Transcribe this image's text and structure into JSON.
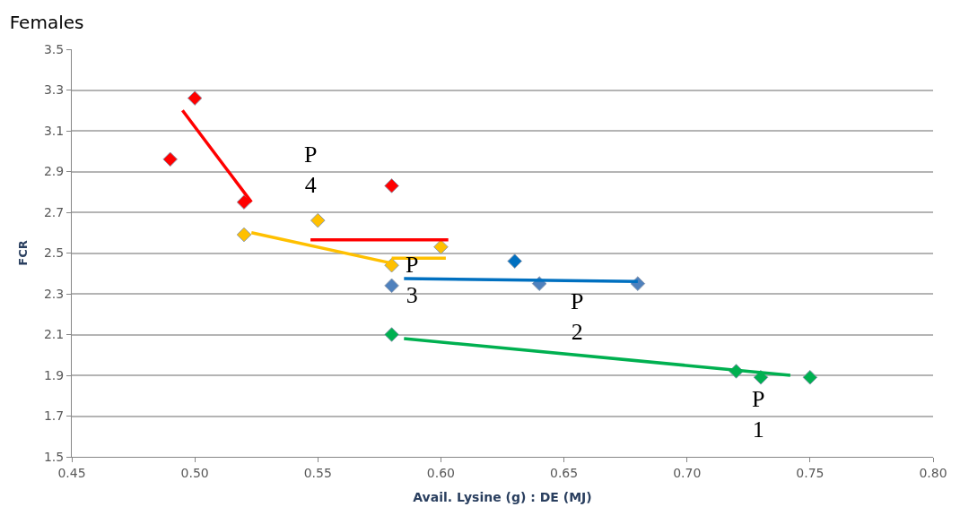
{
  "chart_data": {
    "type": "scatter",
    "title": "Females",
    "xlabel": "Avail. Lysine (g) : DE (MJ)",
    "ylabel": "FCR",
    "xlim": [
      0.45,
      0.8
    ],
    "xticks": [
      {
        "value": 0.45,
        "label": "0.45"
      },
      {
        "value": 0.5,
        "label": "0.50"
      },
      {
        "value": 0.55,
        "label": "0.55"
      },
      {
        "value": 0.6,
        "label": "0.60"
      },
      {
        "value": 0.65,
        "label": "0.65"
      },
      {
        "value": 0.7,
        "label": "0.70"
      },
      {
        "value": 0.75,
        "label": "0.75"
      },
      {
        "value": 0.8,
        "label": "0.80"
      }
    ],
    "ylim": [
      1.5,
      3.5
    ],
    "yticks": [
      1.5,
      1.7,
      1.9,
      2.1,
      2.3,
      2.5,
      2.7,
      2.9,
      3.1,
      3.3,
      3.5
    ],
    "grid": "y",
    "series": [
      {
        "marker": "diamond",
        "color": "#ff0000",
        "x": [
          0.49,
          0.5,
          0.52,
          0.58
        ],
        "values": [
          2.96,
          3.26,
          2.75,
          2.83
        ]
      },
      {
        "marker": "diamond",
        "color": "#ffc000",
        "x": [
          0.52,
          0.55,
          0.58,
          0.6
        ],
        "values": [
          2.59,
          2.66,
          2.44,
          2.53
        ]
      },
      {
        "marker": "diamond",
        "color": "#4f81bd",
        "colors": [
          "#4f81bd",
          "#0070c0",
          "#4f81bd",
          "#4f81bd"
        ],
        "x": [
          0.58,
          0.63,
          0.64,
          0.68
        ],
        "values": [
          2.34,
          2.46,
          2.35,
          2.35
        ]
      },
      {
        "marker": "diamond",
        "color": "#00b050",
        "x": [
          0.58,
          0.72,
          0.73,
          0.75
        ],
        "values": [
          2.1,
          1.92,
          1.89,
          1.89
        ]
      },
      {
        "type": "line",
        "color": "#ff0000",
        "x": [
          0.495,
          0.523
        ],
        "values": [
          3.2,
          2.75
        ]
      },
      {
        "type": "line",
        "color": "#ff0000",
        "x": [
          0.547,
          0.603
        ],
        "values": [
          2.565,
          2.565
        ]
      },
      {
        "type": "line",
        "color": "#ffc000",
        "x": [
          0.523,
          0.58
        ],
        "values": [
          2.6,
          2.45
        ]
      },
      {
        "type": "line",
        "color": "#ffc000",
        "x": [
          0.58,
          0.602
        ],
        "values": [
          2.475,
          2.475
        ]
      },
      {
        "type": "line",
        "color": "#0070c0",
        "x": [
          0.585,
          0.68
        ],
        "values": [
          2.375,
          2.36
        ]
      },
      {
        "type": "line",
        "color": "#00b050",
        "x": [
          0.585,
          0.742
        ],
        "values": [
          2.08,
          1.9
        ]
      }
    ],
    "annotations": [
      "P\n4",
      "P\n3",
      "P\n2",
      "P\n1"
    ]
  }
}
